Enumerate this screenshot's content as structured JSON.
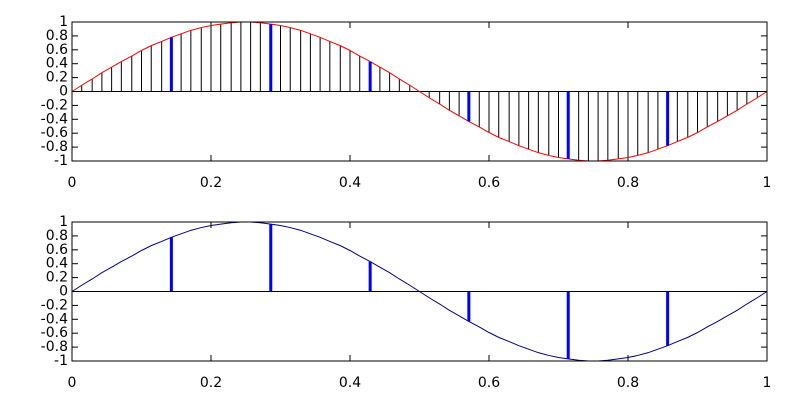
{
  "chart_data": [
    {
      "type": "stem",
      "x": [
        0,
        0.014,
        0.029,
        0.043,
        0.057,
        0.071,
        0.086,
        0.1,
        0.114,
        0.129,
        0.143,
        0.157,
        0.171,
        0.186,
        0.2,
        0.214,
        0.229,
        0.243,
        0.257,
        0.271,
        0.286,
        0.3,
        0.314,
        0.329,
        0.343,
        0.357,
        0.371,
        0.386,
        0.4,
        0.414,
        0.429,
        0.443,
        0.457,
        0.471,
        0.486,
        0.5,
        0.514,
        0.529,
        0.543,
        0.557,
        0.571,
        0.586,
        0.6,
        0.614,
        0.629,
        0.643,
        0.657,
        0.671,
        0.686,
        0.7,
        0.714,
        0.729,
        0.743,
        0.757,
        0.771,
        0.786,
        0.8,
        0.814,
        0.829,
        0.843,
        0.857,
        0.871,
        0.886,
        0.9,
        0.914,
        0.929,
        0.943,
        0.957,
        0.971,
        0.986,
        1
      ],
      "xlim": [
        0,
        1
      ],
      "ylim": [
        -1,
        1
      ],
      "xticks": [
        0,
        0.2,
        0.4,
        0.6,
        0.8,
        1
      ],
      "yticks": [
        -1,
        -0.8,
        -0.6,
        -0.4,
        -0.2,
        0,
        0.2,
        0.4,
        0.6,
        0.8,
        1
      ],
      "series": [
        {
          "kind": "stem",
          "color": "#000000",
          "width": 1,
          "values": [
            0,
            0.09,
            0.18,
            0.27,
            0.35,
            0.43,
            0.51,
            0.59,
            0.66,
            0.72,
            0.78,
            0.83,
            0.88,
            0.92,
            0.95,
            0.97,
            0.99,
            1,
            1,
            0.99,
            0.97,
            0.95,
            0.92,
            0.88,
            0.83,
            0.78,
            0.72,
            0.66,
            0.59,
            0.51,
            0.43,
            0.35,
            0.27,
            0.18,
            0.09,
            0,
            -0.09,
            -0.18,
            -0.27,
            -0.35,
            -0.43,
            -0.51,
            -0.59,
            -0.66,
            -0.72,
            -0.78,
            -0.83,
            -0.88,
            -0.92,
            -0.95,
            -0.97,
            -0.99,
            -1,
            -1,
            -0.99,
            -0.97,
            -0.95,
            -0.92,
            -0.88,
            -0.83,
            -0.78,
            -0.72,
            -0.66,
            -0.59,
            -0.51,
            -0.43,
            -0.35,
            -0.27,
            -0.18,
            -0.09,
            0
          ]
        },
        {
          "kind": "line",
          "color": "#ff0000",
          "width": 1,
          "values": [
            0,
            0.09,
            0.18,
            0.27,
            0.35,
            0.43,
            0.51,
            0.59,
            0.66,
            0.72,
            0.78,
            0.83,
            0.88,
            0.92,
            0.95,
            0.97,
            0.99,
            1,
            1,
            0.99,
            0.97,
            0.95,
            0.92,
            0.88,
            0.83,
            0.78,
            0.72,
            0.66,
            0.59,
            0.51,
            0.43,
            0.35,
            0.27,
            0.18,
            0.09,
            0,
            -0.09,
            -0.18,
            -0.27,
            -0.35,
            -0.43,
            -0.51,
            -0.59,
            -0.66,
            -0.72,
            -0.78,
            -0.83,
            -0.88,
            -0.92,
            -0.95,
            -0.97,
            -0.99,
            -1,
            -1,
            -0.99,
            -0.97,
            -0.95,
            -0.92,
            -0.88,
            -0.83,
            -0.78,
            -0.72,
            -0.66,
            -0.59,
            -0.51,
            -0.43,
            -0.35,
            -0.27,
            -0.18,
            -0.09,
            0
          ]
        },
        {
          "kind": "stem",
          "color": "#0000ff",
          "width": 3,
          "x": [
            0,
            0.143,
            0.286,
            0.429,
            0.571,
            0.714,
            0.857,
            1
          ],
          "values": [
            0,
            0.78,
            0.97,
            0.43,
            -0.43,
            -0.97,
            -0.78,
            0
          ]
        }
      ]
    },
    {
      "type": "stem",
      "x": [
        0,
        0.014,
        0.029,
        0.043,
        0.057,
        0.071,
        0.086,
        0.1,
        0.114,
        0.129,
        0.143,
        0.157,
        0.171,
        0.186,
        0.2,
        0.214,
        0.229,
        0.243,
        0.257,
        0.271,
        0.286,
        0.3,
        0.314,
        0.329,
        0.343,
        0.357,
        0.371,
        0.386,
        0.4,
        0.414,
        0.429,
        0.443,
        0.457,
        0.471,
        0.486,
        0.5,
        0.514,
        0.529,
        0.543,
        0.557,
        0.571,
        0.586,
        0.6,
        0.614,
        0.629,
        0.643,
        0.657,
        0.671,
        0.686,
        0.7,
        0.714,
        0.729,
        0.743,
        0.757,
        0.771,
        0.786,
        0.8,
        0.814,
        0.829,
        0.843,
        0.857,
        0.871,
        0.886,
        0.9,
        0.914,
        0.929,
        0.943,
        0.957,
        0.971,
        0.986,
        1
      ],
      "xlim": [
        0,
        1
      ],
      "ylim": [
        -1,
        1
      ],
      "xticks": [
        0,
        0.2,
        0.4,
        0.6,
        0.8,
        1
      ],
      "yticks": [
        -1,
        -0.8,
        -0.6,
        -0.4,
        -0.2,
        0,
        0.2,
        0.4,
        0.6,
        0.8,
        1
      ],
      "series": [
        {
          "kind": "line",
          "color": "#000080",
          "width": 1,
          "values": [
            0,
            0.09,
            0.18,
            0.27,
            0.35,
            0.43,
            0.51,
            0.59,
            0.66,
            0.72,
            0.78,
            0.83,
            0.88,
            0.92,
            0.95,
            0.97,
            0.99,
            1,
            1,
            0.99,
            0.97,
            0.95,
            0.92,
            0.88,
            0.83,
            0.78,
            0.72,
            0.66,
            0.59,
            0.51,
            0.43,
            0.35,
            0.27,
            0.18,
            0.09,
            0,
            -0.09,
            -0.18,
            -0.27,
            -0.35,
            -0.43,
            -0.51,
            -0.59,
            -0.66,
            -0.72,
            -0.78,
            -0.83,
            -0.88,
            -0.92,
            -0.95,
            -0.97,
            -0.99,
            -1,
            -1,
            -0.99,
            -0.97,
            -0.95,
            -0.92,
            -0.88,
            -0.83,
            -0.78,
            -0.72,
            -0.66,
            -0.59,
            -0.51,
            -0.43,
            -0.35,
            -0.27,
            -0.18,
            -0.09,
            0
          ]
        },
        {
          "kind": "stem",
          "color": "#0000ff",
          "width": 3,
          "x": [
            0,
            0.143,
            0.286,
            0.429,
            0.571,
            0.714,
            0.857,
            1
          ],
          "values": [
            0,
            0.78,
            0.97,
            0.43,
            -0.43,
            -0.97,
            -0.78,
            0
          ]
        }
      ]
    }
  ]
}
